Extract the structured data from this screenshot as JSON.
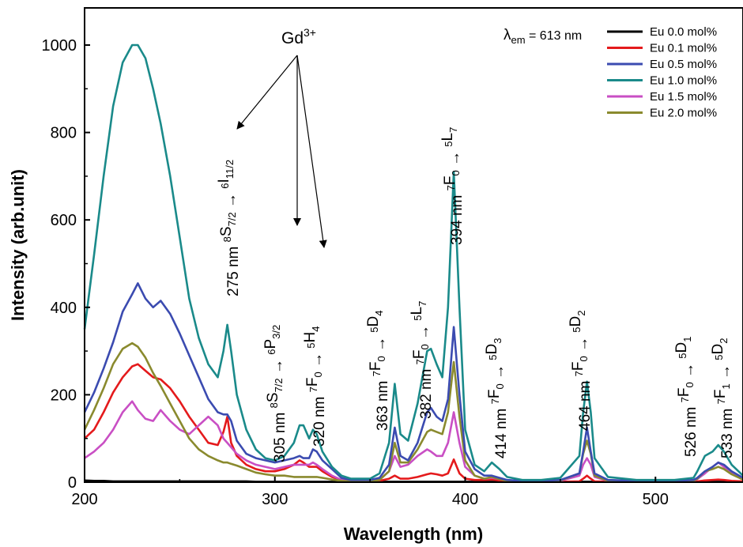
{
  "chart_data": {
    "type": "line",
    "xlabel": "Wavelength (nm)",
    "ylabel": "Intensity (arb.unit)",
    "xlim": [
      200,
      546
    ],
    "ylim": [
      0,
      1085
    ],
    "xticks": [
      200,
      300,
      400,
      500
    ],
    "yticks": [
      0,
      200,
      400,
      600,
      800,
      1000
    ],
    "legend_position": "top-right",
    "em_label": {
      "prefix": "λ",
      "sub": "em",
      "suffix": " = 613 nm"
    },
    "gd_label": {
      "base": "Gd",
      "sup": "3+"
    },
    "x": [
      200,
      205,
      210,
      215,
      220,
      225,
      228,
      232,
      236,
      240,
      245,
      250,
      255,
      260,
      265,
      270,
      273,
      275,
      277,
      280,
      285,
      290,
      295,
      300,
      305,
      310,
      313,
      315,
      318,
      320,
      322,
      325,
      330,
      335,
      340,
      345,
      350,
      355,
      360,
      363,
      366,
      370,
      375,
      380,
      382,
      385,
      388,
      391,
      394,
      397,
      400,
      405,
      410,
      414,
      418,
      422,
      430,
      440,
      450,
      460,
      462,
      464,
      466,
      468,
      475,
      490,
      510,
      520,
      522,
      526,
      530,
      533,
      536,
      540,
      546
    ],
    "series": [
      {
        "name": "Eu 0.0 mol%",
        "color": "#000000",
        "values": [
          4,
          3,
          3,
          2,
          2,
          2,
          2,
          2,
          2,
          2,
          2,
          2,
          2,
          2,
          2,
          2,
          2,
          2,
          2,
          2,
          2,
          1,
          1,
          1,
          1,
          1,
          1,
          1,
          1,
          1,
          1,
          1,
          1,
          1,
          1,
          1,
          1,
          1,
          1,
          1,
          1,
          1,
          1,
          1,
          1,
          1,
          1,
          1,
          1,
          1,
          1,
          1,
          1,
          1,
          1,
          1,
          1,
          1,
          1,
          1,
          1,
          1,
          1,
          1,
          1,
          1,
          1,
          1,
          1,
          1,
          1,
          1,
          1,
          1,
          1
        ]
      },
      {
        "name": "Eu 0.1 mol%",
        "color": "#e41a1c",
        "values": [
          100,
          120,
          160,
          205,
          240,
          265,
          270,
          255,
          240,
          235,
          215,
          185,
          150,
          120,
          90,
          85,
          115,
          150,
          90,
          60,
          40,
          30,
          25,
          25,
          30,
          40,
          50,
          45,
          35,
          35,
          35,
          25,
          12,
          5,
          3,
          3,
          3,
          3,
          8,
          15,
          8,
          8,
          12,
          18,
          20,
          18,
          15,
          20,
          52,
          20,
          8,
          5,
          5,
          6,
          4,
          2,
          1,
          1,
          1,
          2,
          8,
          15,
          8,
          2,
          1,
          1,
          1,
          2,
          2,
          4,
          5,
          6,
          5,
          3,
          2
        ]
      },
      {
        "name": "Eu 0.5 mol%",
        "color": "#3b4bb0",
        "values": [
          160,
          205,
          260,
          320,
          390,
          430,
          455,
          420,
          400,
          415,
          385,
          340,
          290,
          240,
          190,
          160,
          155,
          155,
          140,
          95,
          65,
          55,
          50,
          45,
          50,
          55,
          60,
          55,
          55,
          75,
          70,
          50,
          30,
          10,
          5,
          5,
          5,
          10,
          40,
          125,
          60,
          50,
          90,
          160,
          170,
          150,
          140,
          190,
          355,
          200,
          70,
          30,
          15,
          15,
          10,
          5,
          3,
          3,
          5,
          20,
          70,
          125,
          70,
          20,
          5,
          3,
          3,
          5,
          10,
          25,
          35,
          45,
          40,
          25,
          10
        ]
      },
      {
        "name": "Eu 1.0 mol%",
        "color": "#1a8a8a",
        "values": [
          350,
          520,
          700,
          860,
          960,
          1000,
          1000,
          970,
          900,
          820,
          700,
          560,
          420,
          330,
          270,
          240,
          300,
          360,
          300,
          200,
          120,
          75,
          55,
          50,
          60,
          90,
          130,
          130,
          100,
          120,
          110,
          70,
          35,
          15,
          8,
          8,
          8,
          20,
          90,
          225,
          110,
          95,
          180,
          300,
          305,
          270,
          240,
          400,
          710,
          400,
          120,
          40,
          25,
          45,
          30,
          12,
          5,
          5,
          10,
          60,
          160,
          230,
          160,
          55,
          12,
          5,
          5,
          10,
          25,
          60,
          70,
          85,
          70,
          40,
          15
        ]
      },
      {
        "name": "Eu 1.5 mol%",
        "color": "#c94fc4",
        "values": [
          55,
          70,
          90,
          120,
          160,
          185,
          165,
          145,
          140,
          165,
          140,
          120,
          110,
          130,
          150,
          130,
          100,
          90,
          80,
          65,
          50,
          40,
          35,
          30,
          35,
          40,
          40,
          40,
          40,
          45,
          40,
          30,
          15,
          5,
          3,
          3,
          3,
          6,
          25,
          60,
          35,
          40,
          60,
          75,
          70,
          60,
          60,
          90,
          160,
          90,
          35,
          15,
          8,
          10,
          7,
          3,
          2,
          2,
          3,
          15,
          40,
          55,
          40,
          12,
          3,
          2,
          2,
          3,
          7,
          20,
          35,
          45,
          35,
          20,
          7
        ]
      },
      {
        "name": "Eu 2.0 mol%",
        "color": "#8a8a2e",
        "values": [
          120,
          165,
          215,
          270,
          305,
          318,
          310,
          285,
          250,
          220,
          180,
          140,
          100,
          75,
          60,
          50,
          45,
          45,
          42,
          38,
          30,
          22,
          18,
          15,
          15,
          12,
          12,
          12,
          12,
          12,
          12,
          10,
          6,
          3,
          2,
          2,
          2,
          5,
          25,
          90,
          45,
          45,
          75,
          115,
          120,
          115,
          110,
          160,
          275,
          150,
          50,
          15,
          8,
          12,
          7,
          3,
          2,
          2,
          4,
          20,
          65,
          95,
          65,
          15,
          3,
          2,
          2,
          3,
          8,
          25,
          30,
          35,
          30,
          18,
          6
        ]
      }
    ],
    "annotations": [
      {
        "id": "a275",
        "lines": [
          {
            "t": "275 nm ",
            "s": "n"
          },
          {
            "t": "8",
            "s": "sup"
          },
          {
            "t": "S",
            "s": "n"
          },
          {
            "t": "7/2",
            "s": "sub"
          },
          {
            "t": " → ",
            "s": "n"
          },
          {
            "t": "6",
            "s": "sup"
          },
          {
            "t": "I",
            "s": "n"
          },
          {
            "t": "11/2",
            "s": "sub"
          }
        ]
      },
      {
        "id": "a305",
        "lines": [
          {
            "t": "305 nm ",
            "s": "n"
          },
          {
            "t": "8",
            "s": "sup"
          },
          {
            "t": "S",
            "s": "n"
          },
          {
            "t": "7/2",
            "s": "sub"
          },
          {
            "t": " → ",
            "s": "n"
          },
          {
            "t": "6",
            "s": "sup"
          },
          {
            "t": "P",
            "s": "n"
          },
          {
            "t": "3/2",
            "s": "sub"
          }
        ]
      },
      {
        "id": "a320",
        "lines": [
          {
            "t": "320 nm ",
            "s": "n"
          },
          {
            "t": "7",
            "s": "sup"
          },
          {
            "t": "F",
            "s": "n"
          },
          {
            "t": "0",
            "s": "sub"
          },
          {
            "t": " → ",
            "s": "n"
          },
          {
            "t": "5",
            "s": "sup"
          },
          {
            "t": "H",
            "s": "n"
          },
          {
            "t": "4",
            "s": "sub"
          }
        ]
      },
      {
        "id": "a363",
        "lines": [
          {
            "t": "363 nm ",
            "s": "n"
          },
          {
            "t": "7",
            "s": "sup"
          },
          {
            "t": "F",
            "s": "n"
          },
          {
            "t": "0",
            "s": "sub"
          },
          {
            "t": " → ",
            "s": "n"
          },
          {
            "t": "5",
            "s": "sup"
          },
          {
            "t": "D",
            "s": "n"
          },
          {
            "t": "4",
            "s": "sub"
          }
        ]
      },
      {
        "id": "a382",
        "lines": [
          {
            "t": "382 nm ",
            "s": "n"
          },
          {
            "t": "7",
            "s": "sup"
          },
          {
            "t": "F",
            "s": "n"
          },
          {
            "t": "0",
            "s": "sub"
          },
          {
            "t": " → ",
            "s": "n"
          },
          {
            "t": "5",
            "s": "sup"
          },
          {
            "t": "L",
            "s": "n"
          },
          {
            "t": "7",
            "s": "sub"
          }
        ]
      },
      {
        "id": "a394",
        "lines": [
          {
            "t": "394 nm ",
            "s": "n"
          },
          {
            "t": "7",
            "s": "sup"
          },
          {
            "t": "F",
            "s": "n"
          },
          {
            "t": "0",
            "s": "sub"
          },
          {
            "t": " → ",
            "s": "n"
          },
          {
            "t": "5",
            "s": "sup"
          },
          {
            "t": "L",
            "s": "n"
          },
          {
            "t": "7",
            "s": "sub"
          }
        ]
      },
      {
        "id": "a414",
        "lines": [
          {
            "t": "414 nm ",
            "s": "n"
          },
          {
            "t": "7",
            "s": "sup"
          },
          {
            "t": "F",
            "s": "n"
          },
          {
            "t": "0",
            "s": "sub"
          },
          {
            "t": " → ",
            "s": "n"
          },
          {
            "t": "5",
            "s": "sup"
          },
          {
            "t": "D",
            "s": "n"
          },
          {
            "t": "3",
            "s": "sub"
          }
        ]
      },
      {
        "id": "a464",
        "lines": [
          {
            "t": "464 nm ",
            "s": "n"
          },
          {
            "t": "7",
            "s": "sup"
          },
          {
            "t": "F",
            "s": "n"
          },
          {
            "t": "0",
            "s": "sub"
          },
          {
            "t": " → ",
            "s": "n"
          },
          {
            "t": "5",
            "s": "sup"
          },
          {
            "t": "D",
            "s": "n"
          },
          {
            "t": "2",
            "s": "sub"
          }
        ]
      },
      {
        "id": "a526",
        "lines": [
          {
            "t": "526 nm ",
            "s": "n"
          },
          {
            "t": "7",
            "s": "sup"
          },
          {
            "t": "F",
            "s": "n"
          },
          {
            "t": "0",
            "s": "sub"
          },
          {
            "t": " → ",
            "s": "n"
          },
          {
            "t": "5",
            "s": "sup"
          },
          {
            "t": "D",
            "s": "n"
          },
          {
            "t": "1",
            "s": "sub"
          }
        ]
      },
      {
        "id": "a533",
        "lines": [
          {
            "t": "533 nm ",
            "s": "n"
          },
          {
            "t": "7",
            "s": "sup"
          },
          {
            "t": "F",
            "s": "n"
          },
          {
            "t": "1",
            "s": "sub"
          },
          {
            "t": " → ",
            "s": "n"
          },
          {
            "t": "5",
            "s": "sup"
          },
          {
            "t": "D",
            "s": "n"
          },
          {
            "t": "2",
            "s": "sub"
          }
        ]
      }
    ]
  }
}
